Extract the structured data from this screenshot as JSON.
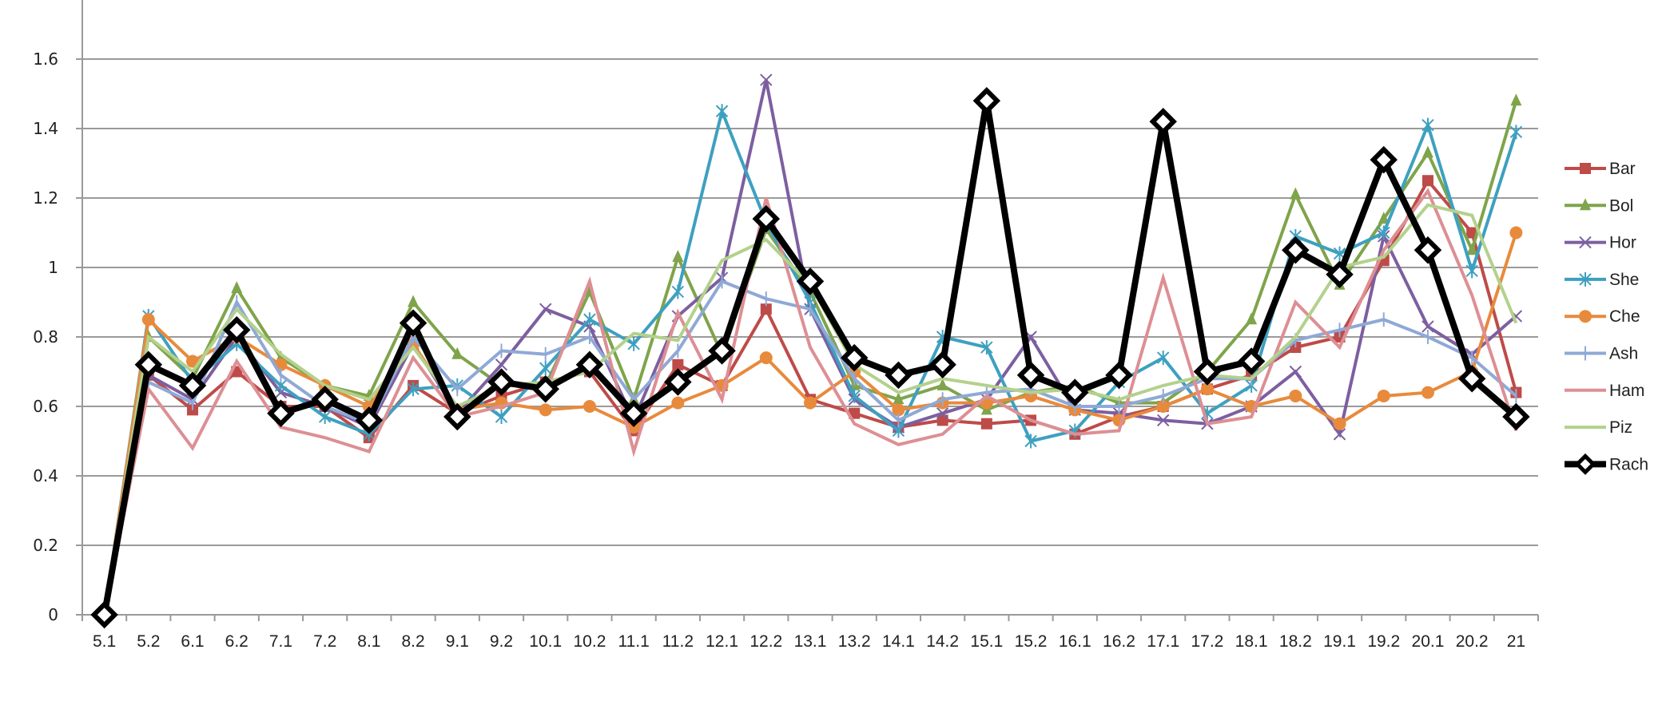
{
  "chart_data": {
    "type": "line",
    "title": "",
    "xlabel": "",
    "ylabel": "",
    "ylim": [
      0,
      1.6
    ],
    "yticks": [
      0,
      0.2,
      0.4,
      0.6,
      0.8,
      1,
      1.2,
      1.4,
      1.6
    ],
    "ytick_labels": [
      "0",
      "0.2",
      "0.4",
      "0.6",
      "0.8",
      "1",
      "1.2",
      "1.4",
      "1.6"
    ],
    "grid": true,
    "legend_position": "right",
    "categories": [
      "5.1",
      "5.2",
      "6.1",
      "6.2",
      "7.1",
      "7.2",
      "8.1",
      "8.2",
      "9.1",
      "9.2",
      "10.1",
      "10.2",
      "11.1",
      "11.2",
      "12.1",
      "12.2",
      "13.1",
      "13.2",
      "14.1",
      "14.2",
      "15.1",
      "15.2",
      "16.1",
      "16.2",
      "17.1",
      "17.2",
      "18.1",
      "18.2",
      "19.1",
      "19.2",
      "20.1",
      "20.2",
      "21"
    ],
    "series": [
      {
        "name": "Bar",
        "color": "#be4b48",
        "marker": "square",
        "values": [
          0,
          0.69,
          0.59,
          0.7,
          0.6,
          0.6,
          0.51,
          0.66,
          0.58,
          0.63,
          0.67,
          0.7,
          0.53,
          0.72,
          0.66,
          0.88,
          0.62,
          0.58,
          0.54,
          0.56,
          0.55,
          0.56,
          0.52,
          0.57,
          0.6,
          0.65,
          0.69,
          0.77,
          0.8,
          1.02,
          1.25,
          1.1,
          0.64
        ]
      },
      {
        "name": "Bol",
        "color": "#7fa44b",
        "marker": "triangle",
        "values": [
          0,
          0.8,
          0.68,
          0.94,
          0.74,
          0.66,
          0.63,
          0.9,
          0.75,
          0.66,
          0.66,
          0.93,
          0.62,
          1.03,
          0.75,
          1.11,
          0.93,
          0.66,
          0.62,
          0.66,
          0.59,
          0.64,
          0.66,
          0.61,
          0.61,
          0.7,
          0.85,
          1.21,
          0.95,
          1.14,
          1.33,
          1.05,
          1.48
        ]
      },
      {
        "name": "Hor",
        "color": "#7d5fa0",
        "marker": "x",
        "values": [
          0,
          0.69,
          0.62,
          0.8,
          0.64,
          0.6,
          0.54,
          0.78,
          0.58,
          0.72,
          0.88,
          0.83,
          0.56,
          0.86,
          0.97,
          1.54,
          0.88,
          0.62,
          0.54,
          0.58,
          0.62,
          0.8,
          0.59,
          0.58,
          0.56,
          0.55,
          0.6,
          0.7,
          0.52,
          1.09,
          0.83,
          0.75,
          0.86
        ]
      },
      {
        "name": "She",
        "color": "#3ea0c0",
        "marker": "star",
        "values": [
          0,
          0.86,
          0.67,
          0.78,
          0.66,
          0.57,
          0.52,
          0.65,
          0.66,
          0.57,
          0.71,
          0.85,
          0.78,
          0.93,
          1.45,
          1.13,
          0.9,
          0.63,
          0.53,
          0.8,
          0.77,
          0.5,
          0.53,
          0.67,
          0.74,
          0.58,
          0.66,
          1.09,
          1.04,
          1.1,
          1.41,
          0.99,
          1.39
        ]
      },
      {
        "name": "Che",
        "color": "#e88a3c",
        "marker": "circle",
        "values": [
          0,
          0.85,
          0.73,
          0.8,
          0.72,
          0.66,
          0.6,
          0.78,
          0.59,
          0.61,
          0.59,
          0.6,
          0.54,
          0.61,
          0.66,
          0.74,
          0.61,
          0.7,
          0.59,
          0.61,
          0.61,
          0.63,
          0.59,
          0.56,
          0.6,
          0.65,
          0.6,
          0.63,
          0.55,
          0.63,
          0.64,
          0.7,
          1.1
        ]
      },
      {
        "name": "Ash",
        "color": "#8fa9d6",
        "marker": "plus",
        "values": [
          0,
          0.67,
          0.61,
          0.9,
          0.69,
          0.6,
          0.55,
          0.8,
          0.65,
          0.76,
          0.75,
          0.8,
          0.62,
          0.76,
          0.96,
          0.91,
          0.88,
          0.68,
          0.56,
          0.62,
          0.64,
          0.65,
          0.6,
          0.6,
          0.63,
          0.68,
          0.68,
          0.79,
          0.82,
          0.85,
          0.8,
          0.74,
          0.63
        ]
      },
      {
        "name": "Ham",
        "color": "#dd8f94",
        "marker": "none",
        "values": [
          0,
          0.65,
          0.48,
          0.73,
          0.54,
          0.51,
          0.47,
          0.74,
          0.57,
          0.6,
          0.64,
          0.96,
          0.47,
          0.87,
          0.62,
          1.2,
          0.77,
          0.55,
          0.49,
          0.52,
          0.63,
          0.56,
          0.52,
          0.53,
          0.97,
          0.55,
          0.57,
          0.9,
          0.77,
          1.05,
          1.22,
          0.92,
          0.53
        ]
      },
      {
        "name": "Piz",
        "color": "#b3d18c",
        "marker": "none",
        "values": [
          0,
          0.8,
          0.7,
          0.88,
          0.75,
          0.66,
          0.62,
          0.77,
          0.6,
          0.66,
          0.67,
          0.7,
          0.81,
          0.79,
          1.02,
          1.08,
          0.95,
          0.72,
          0.64,
          0.68,
          0.66,
          0.64,
          0.65,
          0.62,
          0.66,
          0.69,
          0.68,
          0.8,
          1.0,
          1.03,
          1.18,
          1.15,
          0.84
        ]
      },
      {
        "name": "Rach",
        "color": "#000000",
        "marker": "diamond",
        "values": [
          0,
          0.72,
          0.66,
          0.82,
          0.58,
          0.62,
          0.56,
          0.84,
          0.57,
          0.67,
          0.65,
          0.72,
          0.58,
          0.67,
          0.76,
          1.14,
          0.96,
          0.74,
          0.69,
          0.72,
          1.48,
          0.69,
          0.64,
          0.69,
          1.42,
          0.7,
          0.73,
          1.05,
          0.98,
          1.31,
          1.05,
          0.68,
          0.57
        ]
      }
    ]
  }
}
